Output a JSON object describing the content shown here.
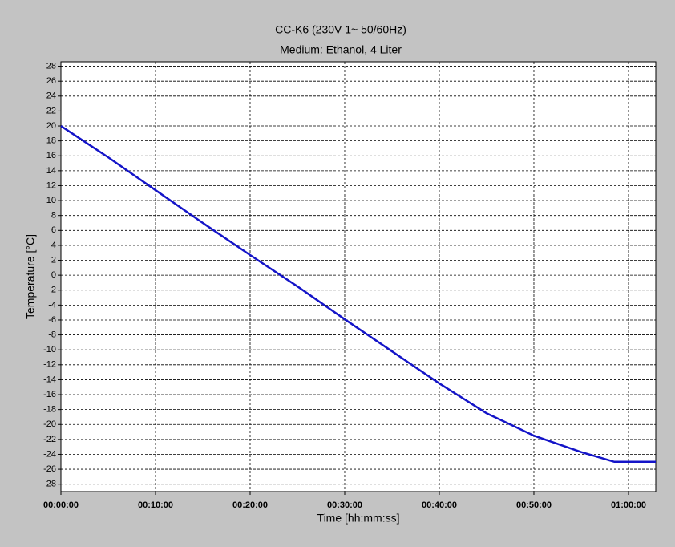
{
  "chart_data": {
    "type": "line",
    "title": "CC-K6 (230V 1~ 50/60Hz)",
    "subtitle": "Medium: Ethanol, 4 Liter",
    "xlabel": "Time [hh:mm:ss]",
    "ylabel": "Temperature [°C]",
    "x": [
      0,
      300,
      600,
      900,
      1200,
      1500,
      1800,
      2100,
      2400,
      2700,
      3000,
      3300,
      3510,
      3600,
      3773
    ],
    "values": [
      20,
      15.8,
      11.4,
      7.0,
      2.7,
      -1.5,
      -5.9,
      -10.2,
      -14.5,
      -18.5,
      -21.5,
      -23.7,
      -25,
      -25,
      -25
    ],
    "color": "#1414c8",
    "xlim": [
      0,
      3773
    ],
    "ylim": [
      -29,
      28.6
    ],
    "xticks": [
      {
        "value": 0,
        "label": "00:00:00"
      },
      {
        "value": 600,
        "label": "00:10:00"
      },
      {
        "value": 1200,
        "label": "00:20:00"
      },
      {
        "value": 1800,
        "label": "00:30:00"
      },
      {
        "value": 2400,
        "label": "00:40:00"
      },
      {
        "value": 3000,
        "label": "00:50:00"
      },
      {
        "value": 3600,
        "label": "01:00:00"
      }
    ],
    "yticks": [
      -28,
      -26,
      -24,
      -22,
      -20,
      -18,
      -16,
      -14,
      -12,
      -10,
      -8,
      -6,
      -4,
      -2,
      0,
      2,
      4,
      6,
      8,
      10,
      12,
      14,
      16,
      18,
      20,
      22,
      24,
      26,
      28
    ],
    "grid": true
  }
}
